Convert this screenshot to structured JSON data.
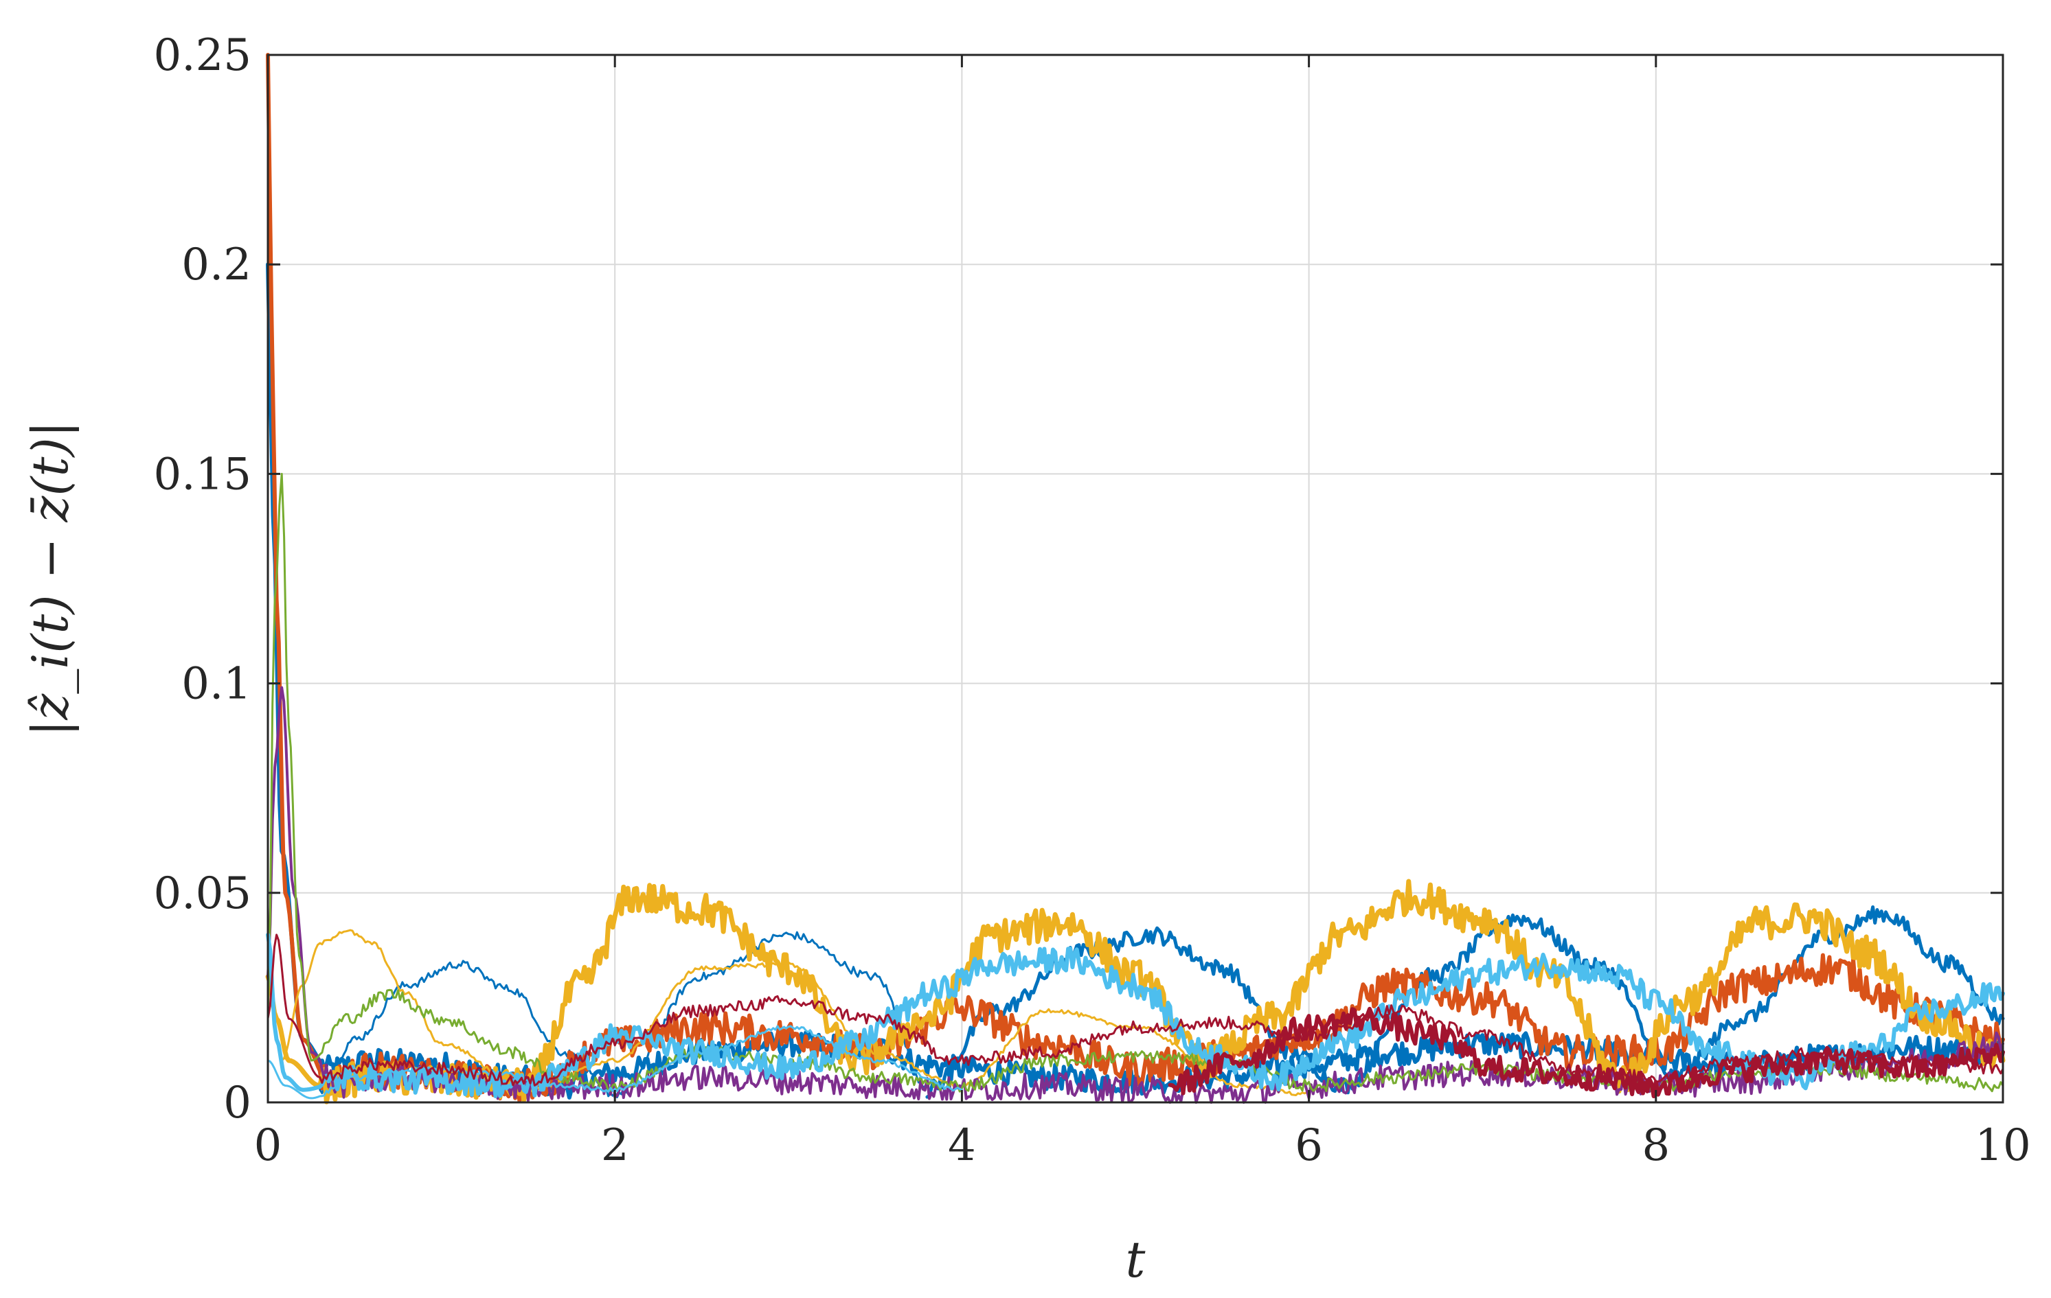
{
  "chart_data": {
    "type": "line",
    "xlabel": "t",
    "ylabel": "|ẑ_i(t) − z̄(t)|",
    "xlim": [
      0,
      10
    ],
    "ylim": [
      0,
      0.25
    ],
    "xticks": [
      0,
      2,
      4,
      6,
      8,
      10
    ],
    "xtick_labels": [
      "0",
      "2",
      "4",
      "6",
      "8",
      "10"
    ],
    "yticks": [
      0,
      0.05,
      0.1,
      0.15,
      0.2,
      0.25
    ],
    "ytick_labels": [
      "0",
      "0.05",
      "0.1",
      "0.15",
      "0.2",
      "0.25"
    ],
    "grid": true,
    "legend": "none",
    "series": [
      {
        "color": "#0072BD",
        "width": 6,
        "noise": 0.003,
        "x": [
          0,
          0.03,
          0.08,
          0.2,
          0.35,
          0.6,
          1.0,
          1.4,
          1.7,
          2.0,
          2.5,
          3.0,
          3.5,
          3.8,
          4.0,
          4.5,
          5.0,
          5.5,
          6.0,
          6.5,
          7.0,
          7.5,
          8.0,
          8.5,
          9.0,
          9.5,
          10.0
        ],
        "y": [
          0.2,
          0.14,
          0.06,
          0.015,
          0.008,
          0.01,
          0.009,
          0.006,
          0.004,
          0.007,
          0.012,
          0.014,
          0.013,
          0.009,
          0.008,
          0.006,
          0.005,
          0.006,
          0.009,
          0.012,
          0.014,
          0.013,
          0.01,
          0.009,
          0.011,
          0.013,
          0.012
        ]
      },
      {
        "color": "#0072BD",
        "width": 3,
        "noise": 0.001,
        "x": [
          0.3,
          0.5,
          0.8,
          1.1,
          1.4,
          1.7,
          2.0,
          2.5,
          3.0,
          3.5,
          3.8
        ],
        "y": [
          0.003,
          0.015,
          0.028,
          0.033,
          0.027,
          0.012,
          0.002,
          0.03,
          0.04,
          0.03,
          0.004
        ]
      },
      {
        "color": "#0072BD",
        "width": 5,
        "noise": 0.002,
        "x": [
          3.8,
          4.2,
          4.7,
          5.1,
          5.5,
          5.9,
          6.2,
          6.7,
          7.2,
          7.7,
          8.1,
          8.5,
          9.0,
          9.3,
          9.7,
          10.0
        ],
        "y": [
          0.003,
          0.022,
          0.036,
          0.04,
          0.032,
          0.012,
          0.004,
          0.03,
          0.044,
          0.032,
          0.006,
          0.02,
          0.04,
          0.045,
          0.033,
          0.02
        ]
      },
      {
        "color": "#D95319",
        "width": 6,
        "noise": 0.004,
        "x": [
          0,
          0.02,
          0.05,
          0.1,
          0.2,
          0.35,
          0.6,
          1.0,
          1.5,
          2.0,
          2.5,
          3.0,
          3.5,
          4.0,
          4.5,
          5.0,
          5.5,
          6.0,
          6.5,
          7.0,
          7.5,
          8.0,
          8.5,
          9.0,
          9.5,
          10.0
        ],
        "y": [
          0.25,
          0.19,
          0.12,
          0.05,
          0.015,
          0.005,
          0.008,
          0.006,
          0.004,
          0.014,
          0.018,
          0.016,
          0.012,
          0.022,
          0.014,
          0.008,
          0.011,
          0.016,
          0.028,
          0.025,
          0.012,
          0.012,
          0.028,
          0.032,
          0.022,
          0.015
        ]
      },
      {
        "color": "#EDB120",
        "width": 7,
        "noise": 0.004,
        "x": [
          0,
          0.05,
          0.12,
          0.3,
          0.6,
          1.0,
          1.5,
          1.8,
          2.1,
          2.5,
          3.0,
          3.4,
          3.8,
          4.2,
          4.6,
          5.0,
          5.4,
          5.8,
          6.2,
          6.6,
          7.0,
          7.4,
          7.8,
          8.2,
          8.6,
          8.9,
          9.2,
          9.6,
          10.0
        ],
        "y": [
          0.03,
          0.02,
          0.01,
          0.004,
          0.006,
          0.005,
          0.004,
          0.028,
          0.049,
          0.046,
          0.032,
          0.01,
          0.02,
          0.04,
          0.043,
          0.03,
          0.01,
          0.02,
          0.04,
          0.049,
          0.044,
          0.03,
          0.006,
          0.025,
          0.043,
          0.044,
          0.036,
          0.02,
          0.01
        ]
      },
      {
        "color": "#EDB120",
        "width": 3,
        "noise": 0.0005,
        "x": [
          0.08,
          0.2,
          0.3,
          0.45,
          0.6,
          0.8,
          1.0,
          1.5,
          2.0,
          2.5,
          3.0,
          3.5,
          4.0,
          4.5,
          5.0,
          5.6,
          6.0
        ],
        "y": [
          0.01,
          0.028,
          0.038,
          0.041,
          0.038,
          0.026,
          0.014,
          0.003,
          0.01,
          0.032,
          0.033,
          0.012,
          0.004,
          0.022,
          0.018,
          0.004,
          0.002
        ]
      },
      {
        "color": "#7E2F8E",
        "width": 4,
        "noise": 0.003,
        "x": [
          0,
          0.04,
          0.08,
          0.15,
          0.25,
          0.4,
          0.8,
          1.2,
          1.6,
          2.0,
          2.5,
          3.0,
          3.5,
          4.0,
          4.5,
          5.0,
          5.5,
          6.0,
          6.5,
          7.0,
          7.5,
          8.0,
          8.5,
          9.0,
          9.5,
          10.0
        ],
        "y": [
          0.03,
          0.08,
          0.099,
          0.05,
          0.012,
          0.004,
          0.006,
          0.004,
          0.003,
          0.004,
          0.006,
          0.005,
          0.004,
          0.003,
          0.004,
          0.003,
          0.002,
          0.004,
          0.006,
          0.007,
          0.006,
          0.004,
          0.005,
          0.008,
          0.01,
          0.014
        ]
      },
      {
        "color": "#77AC30",
        "width": 3,
        "noise": 0.0015,
        "x": [
          0,
          0.04,
          0.08,
          0.12,
          0.18,
          0.25,
          0.45,
          0.7,
          1.0,
          1.4,
          1.7,
          2.0,
          2.5,
          3.0,
          3.5,
          4.0,
          4.5,
          5.0,
          5.5,
          6.0,
          6.5,
          7.0,
          7.5,
          8.0,
          8.5,
          9.0,
          9.5,
          10.0
        ],
        "y": [
          0.02,
          0.12,
          0.15,
          0.09,
          0.035,
          0.01,
          0.02,
          0.026,
          0.02,
          0.012,
          0.006,
          0.004,
          0.012,
          0.01,
          0.006,
          0.004,
          0.01,
          0.011,
          0.01,
          0.004,
          0.006,
          0.008,
          0.006,
          0.004,
          0.007,
          0.008,
          0.006,
          0.004
        ]
      },
      {
        "color": "#4DBEEE",
        "width": 6,
        "noise": 0.003,
        "x": [
          0,
          0.05,
          0.1,
          0.2,
          0.5,
          1.0,
          1.5,
          1.8,
          2.0,
          2.5,
          3.0,
          3.4,
          3.6,
          3.8,
          4.2,
          4.6,
          5.0,
          5.4,
          5.8,
          6.2,
          6.6,
          7.0,
          7.4,
          7.8,
          8.0,
          8.3,
          8.8,
          9.2,
          9.6,
          10.0
        ],
        "y": [
          0.04,
          0.015,
          0.006,
          0.003,
          0.006,
          0.005,
          0.004,
          0.01,
          0.016,
          0.012,
          0.008,
          0.014,
          0.02,
          0.026,
          0.033,
          0.034,
          0.028,
          0.012,
          0.006,
          0.015,
          0.025,
          0.031,
          0.033,
          0.03,
          0.024,
          0.012,
          0.006,
          0.012,
          0.022,
          0.026
        ]
      },
      {
        "color": "#4DBEEE",
        "width": 3,
        "noise": 0.0005,
        "x": [
          0,
          0.1,
          0.25,
          0.5,
          0.9,
          1.3,
          1.7,
          2.0,
          2.5,
          3.0,
          3.5,
          4.0
        ],
        "y": [
          0.01,
          0.004,
          0.001,
          0.006,
          0.008,
          0.007,
          0.004,
          0.003,
          0.012,
          0.018,
          0.01,
          0.003
        ]
      },
      {
        "color": "#A2142F",
        "width": 3,
        "noise": 0.0015,
        "x": [
          0,
          0.05,
          0.12,
          0.3,
          0.6,
          1.0,
          1.5,
          2.0,
          2.5,
          3.0,
          3.5,
          4.0,
          4.5,
          5.0,
          5.5,
          6.0,
          6.5,
          7.0,
          7.5,
          8.0,
          8.5,
          9.0,
          9.5,
          10.0
        ],
        "y": [
          0.02,
          0.04,
          0.02,
          0.006,
          0.009,
          0.008,
          0.005,
          0.014,
          0.022,
          0.024,
          0.02,
          0.01,
          0.012,
          0.018,
          0.019,
          0.016,
          0.022,
          0.016,
          0.008,
          0.006,
          0.01,
          0.012,
          0.01,
          0.008
        ]
      },
      {
        "color": "#A2142F",
        "width": 6,
        "noise": 0.003,
        "x": [
          5.2,
          5.6,
          6.0,
          6.3,
          6.7,
          7.1,
          7.6,
          8.0,
          8.5,
          9.0,
          9.5,
          10.0
        ],
        "y": [
          0.004,
          0.01,
          0.018,
          0.02,
          0.016,
          0.008,
          0.006,
          0.004,
          0.008,
          0.01,
          0.008,
          0.012
        ]
      }
    ]
  }
}
